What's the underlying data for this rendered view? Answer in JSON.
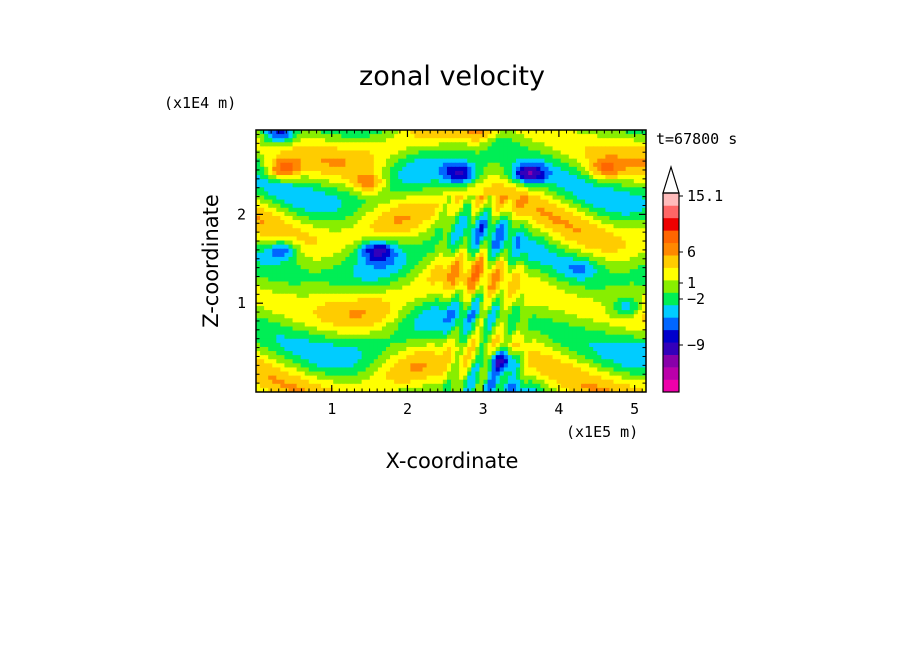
{
  "chart_data": {
    "type": "heatmap",
    "title": "zonal velocity",
    "xlabel": "X-coordinate",
    "ylabel": "Z-coordinate",
    "x_unit": "(x1E5 m)",
    "y_unit": "(x1E4 m)",
    "time_label": "t=67800 s",
    "xlim": [
      0,
      5.15
    ],
    "ylim": [
      0,
      2.95
    ],
    "x_ticks": [
      "1",
      "2",
      "3",
      "4",
      "5"
    ],
    "y_ticks": [
      "1",
      "2"
    ],
    "colorbar": {
      "labels": [
        "15.1",
        "6",
        "1",
        "−2",
        "−9"
      ],
      "levels": [
        {
          "color": "#ee00aa"
        },
        {
          "color": "#bb00aa"
        },
        {
          "color": "#8800aa"
        },
        {
          "color": "#3300bb"
        },
        {
          "color": "#0000cc"
        },
        {
          "color": "#0066ff"
        },
        {
          "color": "#00ccff"
        },
        {
          "color": "#00ee55"
        },
        {
          "color": "#88ee00"
        },
        {
          "color": "#ffff00"
        },
        {
          "color": "#ffcc00"
        },
        {
          "color": "#ff8800"
        },
        {
          "color": "#ff6600"
        },
        {
          "color": "#ee0000"
        },
        {
          "color": "#ff6666"
        },
        {
          "color": "#ffbbbb"
        }
      ],
      "extend_max": true
    },
    "features": [
      {
        "x": 3.27,
        "z": 0.35,
        "v": -9,
        "note": "mountain wave core"
      },
      {
        "x": 1.6,
        "z": 1.6,
        "v": -8
      },
      {
        "x": 0.35,
        "z": 1.6,
        "v": -7
      },
      {
        "x": 2.7,
        "z": 2.45,
        "v": -8
      },
      {
        "x": 3.6,
        "z": 2.45,
        "v": -9
      },
      {
        "x": 3.2,
        "z": 2.85,
        "v": -3
      },
      {
        "x": 0.3,
        "z": 2.9,
        "v": -9
      },
      {
        "x": 0.35,
        "z": 2.5,
        "v": 8
      },
      {
        "x": 1.5,
        "z": 2.35,
        "v": 6
      },
      {
        "x": 4.6,
        "z": 2.5,
        "v": 5
      },
      {
        "x": 3.0,
        "z": 2.9,
        "v": 4
      },
      {
        "x": 4.9,
        "z": 0.95,
        "v": -6
      },
      {
        "x": 4.3,
        "z": 1.4,
        "v": -3
      }
    ]
  }
}
